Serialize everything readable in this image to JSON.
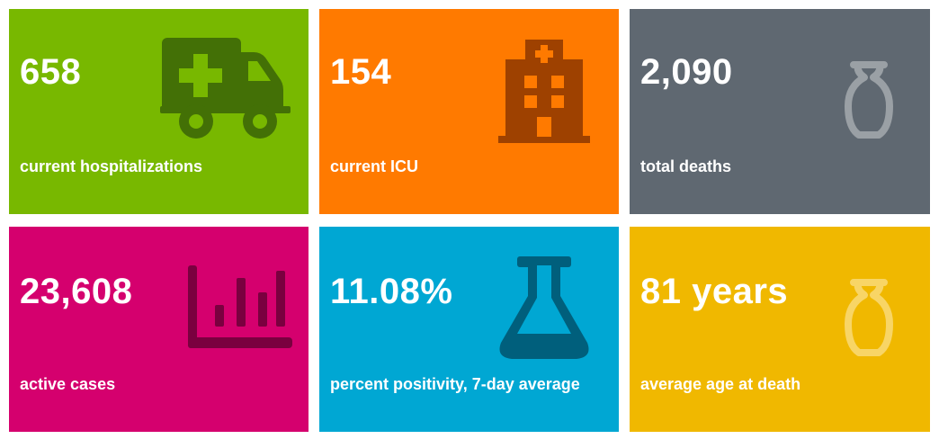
{
  "tiles": [
    {
      "value": "658",
      "label": "current hospitalizations",
      "icon": "ambulance-icon",
      "color": "#78b800",
      "icon_color": "#437006"
    },
    {
      "value": "154",
      "label": "current ICU",
      "icon": "hospital-icon",
      "color": "#ff7a00",
      "icon_color": "#9e4100"
    },
    {
      "value": "2,090",
      "label": "total deaths",
      "icon": "urn-icon",
      "color": "#5f6871",
      "icon_color": "#9aa0a5"
    },
    {
      "value": "23,608",
      "label": "active cases",
      "icon": "bar-chart-icon",
      "color": "#d5006e",
      "icon_color": "#7a003f"
    },
    {
      "value": "11.08%",
      "label": "percent positivity, 7-day average",
      "icon": "flask-icon",
      "color": "#00a7d3",
      "icon_color": "#005f7c"
    },
    {
      "value": "81 years",
      "label": "average age at death",
      "icon": "urn-icon",
      "color": "#f0b800",
      "icon_color": "#f8d566"
    }
  ]
}
